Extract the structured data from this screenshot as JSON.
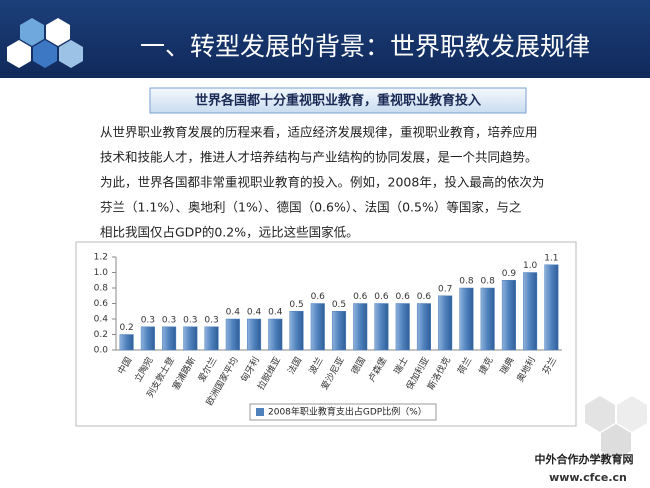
{
  "header": {
    "title": "一、转型发展的背景：世界职教发展规律"
  },
  "subtitle": "世界各国都十分重视职业教育，重视职业教育投入",
  "paragraph": [
    "从世界职业教育发展的历程来看，适应经济发展规律，重视职业教育，培养应用",
    "技术和技能人才，推进人才培养结构与产业结构的协同发展，是一个共同趋势。",
    "为此，世界各国都非常重视职业教育的投入。例如，2008年，投入最高的依次为",
    "芬兰（1.1%）、奥地利（1%）、德国（0.6%）、法国（0.5%）等国家，与之",
    "相比我国仅占GDP的0.2%，远比这些国家低。"
  ],
  "watermark": [
    "中外合作办学教育网",
    "www.cfce.cn"
  ],
  "chart_data": {
    "type": "bar",
    "categories": [
      "中国",
      "立陶宛",
      "列支敦士登",
      "塞浦路斯",
      "爱尔兰",
      "欧洲国家平均",
      "匈牙利",
      "拉脱维亚",
      "法国",
      "波兰",
      "爱沙尼亚",
      "德国",
      "卢森堡",
      "瑞士",
      "保加利亚",
      "斯洛伐克",
      "荷兰",
      "捷克",
      "瑞典",
      "奥地利",
      "芬兰"
    ],
    "series": [
      {
        "name": "2008年职业教育支出占GDP比例（%）",
        "color": "#4f81bd",
        "values": [
          0.2,
          0.3,
          0.3,
          0.3,
          0.3,
          0.4,
          0.4,
          0.4,
          0.5,
          0.6,
          0.5,
          0.6,
          0.6,
          0.6,
          0.6,
          0.7,
          0.8,
          0.8,
          0.9,
          1.0,
          1.1
        ],
        "value_labels": [
          "0.2",
          "0.3",
          "0.3",
          "0.3",
          "0.3",
          "0.4",
          "0.4",
          "0.4",
          "0.5",
          "0.6",
          "0.5",
          "0.6",
          "0.6",
          "0.6",
          "0.6",
          "0.7",
          "0.8",
          "0.8",
          "0.9",
          "1.0",
          "1.1"
        ]
      }
    ],
    "ylim": [
      0,
      1.2
    ],
    "yticks": [
      {
        "value": 0,
        "label": "0.0"
      },
      {
        "value": 0.2,
        "label": "0.2"
      },
      {
        "value": 0.4,
        "label": "0.4"
      },
      {
        "value": 0.6,
        "label": "0.6"
      },
      {
        "value": 0.8,
        "label": "0.8"
      },
      {
        "value": 1,
        "label": "1.0"
      },
      {
        "value": 1.2,
        "label": "1.2"
      }
    ],
    "legend": "bottom"
  }
}
